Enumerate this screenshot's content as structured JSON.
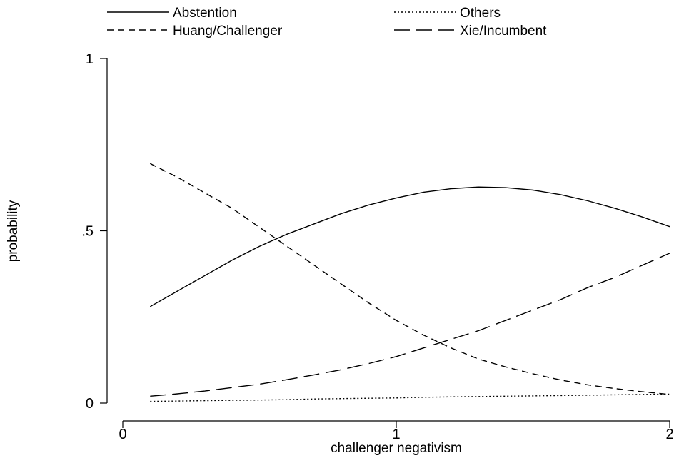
{
  "chart_data": {
    "type": "line",
    "title": "",
    "xlabel": "challenger negativism",
    "ylabel": "probability",
    "xlim": [
      0,
      2
    ],
    "ylim": [
      0,
      1
    ],
    "x_ticks": [
      {
        "value": 0,
        "label": "0"
      },
      {
        "value": 1,
        "label": "1"
      },
      {
        "value": 2,
        "label": "2"
      }
    ],
    "y_ticks": [
      {
        "value": 0,
        "label": "0"
      },
      {
        "value": 0.5,
        "label": ".5"
      },
      {
        "value": 1,
        "label": "1"
      }
    ],
    "grid": false,
    "legend_position": "top",
    "series": [
      {
        "name": "Abstention",
        "style": "solid",
        "x": [
          0.1,
          0.2,
          0.3,
          0.4,
          0.5,
          0.6,
          0.7,
          0.8,
          0.9,
          1.0,
          1.1,
          1.2,
          1.3,
          1.4,
          1.5,
          1.6,
          1.7,
          1.8,
          1.9,
          2.0
        ],
        "y": [
          0.28,
          0.325,
          0.37,
          0.415,
          0.455,
          0.49,
          0.52,
          0.55,
          0.575,
          0.595,
          0.612,
          0.622,
          0.627,
          0.625,
          0.618,
          0.605,
          0.587,
          0.565,
          0.54,
          0.512
        ]
      },
      {
        "name": "Others",
        "style": "dotted",
        "x": [
          0.1,
          0.2,
          0.3,
          0.4,
          0.5,
          0.6,
          0.7,
          0.8,
          0.9,
          1.0,
          1.1,
          1.2,
          1.3,
          1.4,
          1.5,
          1.6,
          1.7,
          1.8,
          1.9,
          2.0
        ],
        "y": [
          0.005,
          0.006,
          0.007,
          0.008,
          0.009,
          0.01,
          0.012,
          0.013,
          0.014,
          0.015,
          0.017,
          0.018,
          0.019,
          0.02,
          0.021,
          0.022,
          0.023,
          0.024,
          0.025,
          0.026
        ]
      },
      {
        "name": "Huang/Challenger",
        "style": "dashed",
        "x": [
          0.1,
          0.2,
          0.3,
          0.4,
          0.5,
          0.6,
          0.7,
          0.8,
          0.9,
          1.0,
          1.1,
          1.2,
          1.3,
          1.4,
          1.5,
          1.6,
          1.7,
          1.8,
          1.9,
          2.0
        ],
        "y": [
          0.695,
          0.655,
          0.61,
          0.565,
          0.51,
          0.455,
          0.4,
          0.345,
          0.29,
          0.24,
          0.197,
          0.16,
          0.128,
          0.105,
          0.085,
          0.067,
          0.053,
          0.042,
          0.033,
          0.025
        ]
      },
      {
        "name": "Xie/Incumbent",
        "style": "longdash",
        "x": [
          0.1,
          0.2,
          0.3,
          0.4,
          0.5,
          0.6,
          0.7,
          0.8,
          0.9,
          1.0,
          1.1,
          1.2,
          1.3,
          1.4,
          1.5,
          1.6,
          1.7,
          1.8,
          1.9,
          2.0
        ],
        "y": [
          0.02,
          0.027,
          0.035,
          0.045,
          0.055,
          0.068,
          0.082,
          0.097,
          0.115,
          0.135,
          0.16,
          0.185,
          0.21,
          0.24,
          0.27,
          0.3,
          0.335,
          0.365,
          0.4,
          0.435
        ]
      }
    ]
  }
}
